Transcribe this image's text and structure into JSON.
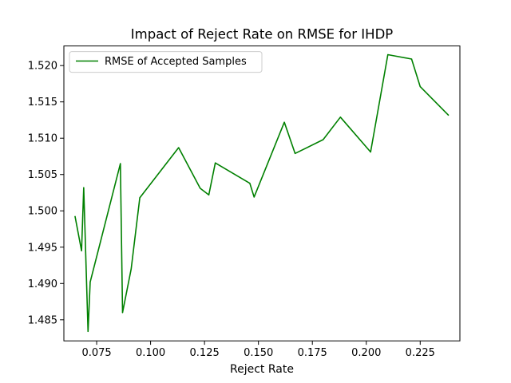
{
  "chart_data": {
    "type": "line",
    "title": "Impact of Reject Rate on RMSE for IHDP",
    "xlabel": "Reject Rate",
    "ylabel": "",
    "xlim": [
      0.0598,
      0.2434
    ],
    "ylim": [
      1.4821,
      1.5227
    ],
    "xticks": [
      0.075,
      0.1,
      0.125,
      0.15,
      0.175,
      0.2,
      0.225
    ],
    "xtick_labels": [
      "0.075",
      "0.100",
      "0.125",
      "0.150",
      "0.175",
      "0.200",
      "0.225"
    ],
    "yticks": [
      1.485,
      1.49,
      1.495,
      1.5,
      1.505,
      1.51,
      1.515,
      1.52
    ],
    "ytick_labels": [
      "1.485",
      "1.490",
      "1.495",
      "1.500",
      "1.505",
      "1.510",
      "1.515",
      "1.520"
    ],
    "grid": false,
    "legend_position": "upper-left",
    "series": [
      {
        "name": "RMSE of Accepted Samples",
        "color": "#008000",
        "x": [
          0.065,
          0.068,
          0.069,
          0.071,
          0.072,
          0.086,
          0.087,
          0.091,
          0.095,
          0.113,
          0.123,
          0.127,
          0.13,
          0.146,
          0.148,
          0.162,
          0.167,
          0.18,
          0.188,
          0.202,
          0.21,
          0.221,
          0.225,
          0.238
        ],
        "y": [
          1.4992,
          1.4945,
          1.5032,
          1.4834,
          1.4902,
          1.5065,
          1.486,
          1.492,
          1.5018,
          1.5087,
          1.5031,
          1.5022,
          1.5066,
          1.5038,
          1.5019,
          1.5122,
          1.5079,
          1.5098,
          1.5129,
          1.5081,
          1.5215,
          1.5209,
          1.5171,
          1.5132
        ]
      }
    ]
  }
}
